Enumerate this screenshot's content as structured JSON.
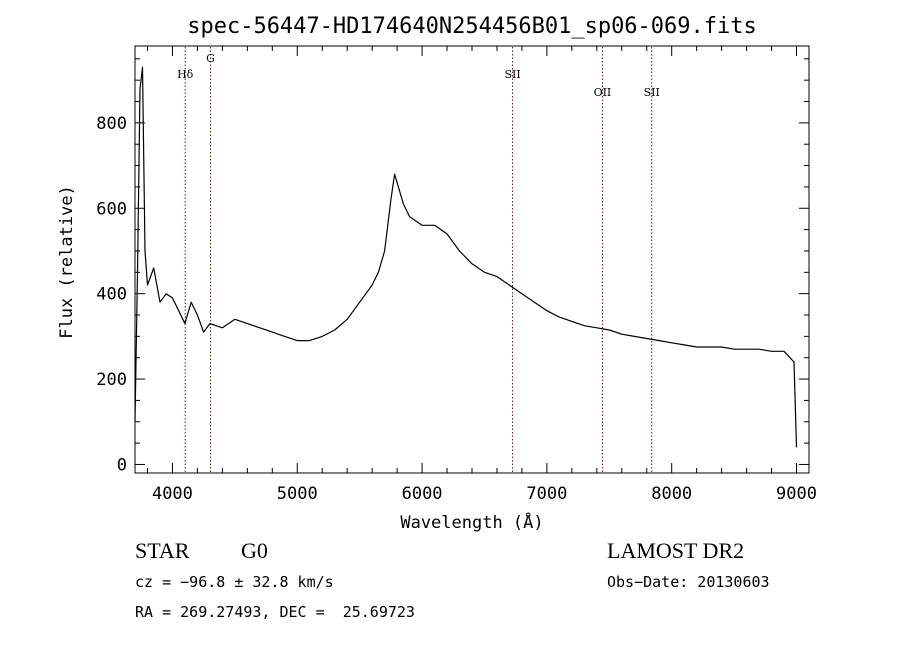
{
  "chart_data": {
    "type": "line",
    "title": "spec-56447-HD174640N254456B01_sp06-069.fits",
    "xlabel": "Wavelength (Å)",
    "ylabel": "Flux (relative)",
    "xlim": [
      3700,
      9100
    ],
    "ylim": [
      -20,
      980
    ],
    "x_ticks": [
      4000,
      5000,
      6000,
      7000,
      8000,
      9000
    ],
    "y_ticks": [
      0,
      200,
      400,
      600,
      800
    ],
    "grid": false,
    "legend": "none",
    "line_color": "#000000",
    "marker_color": "#8b0000",
    "lines": [
      {
        "label": "Hδ",
        "wavelength": 4102
      },
      {
        "label": "G",
        "wavelength": 4305
      },
      {
        "label": "SII",
        "wavelength": 6725
      },
      {
        "label": "OII",
        "wavelength": 7445
      },
      {
        "label": "SII",
        "wavelength": 7840
      }
    ],
    "series": [
      {
        "x": [
          3700,
          3720,
          3740,
          3760,
          3780,
          3800,
          3850,
          3900,
          3950,
          4000,
          4050,
          4100,
          4150,
          4200,
          4250,
          4300,
          4400,
          4500,
          4600,
          4700,
          4800,
          4900,
          5000,
          5100,
          5200,
          5300,
          5400,
          5500,
          5600,
          5650,
          5700,
          5750,
          5780,
          5800,
          5850,
          5900,
          6000,
          6100,
          6200,
          6300,
          6400,
          6500,
          6600,
          6700,
          6800,
          6900,
          7000,
          7100,
          7200,
          7300,
          7400,
          7500,
          7600,
          7700,
          7800,
          7900,
          8000,
          8100,
          8200,
          8300,
          8400,
          8500,
          8600,
          8700,
          8800,
          8900,
          8980,
          9000
        ],
        "y": [
          100,
          450,
          880,
          930,
          500,
          420,
          460,
          380,
          400,
          390,
          360,
          330,
          380,
          350,
          310,
          330,
          320,
          340,
          330,
          320,
          310,
          300,
          290,
          290,
          300,
          315,
          340,
          380,
          420,
          450,
          500,
          620,
          680,
          660,
          610,
          580,
          560,
          560,
          540,
          500,
          470,
          450,
          440,
          420,
          400,
          380,
          360,
          345,
          335,
          325,
          320,
          315,
          305,
          300,
          295,
          290,
          285,
          280,
          275,
          275,
          275,
          270,
          270,
          270,
          265,
          265,
          240,
          40
        ]
      }
    ]
  },
  "info": {
    "obj_class": "STAR",
    "obj_subclass": "G0",
    "survey": "LAMOST DR2",
    "cz": "cz = −96.8 ± 32.8 km/s",
    "obs_date": "Obs−Date: 20130603",
    "radec": "RA = 269.27493, DEC =  25.69723"
  }
}
